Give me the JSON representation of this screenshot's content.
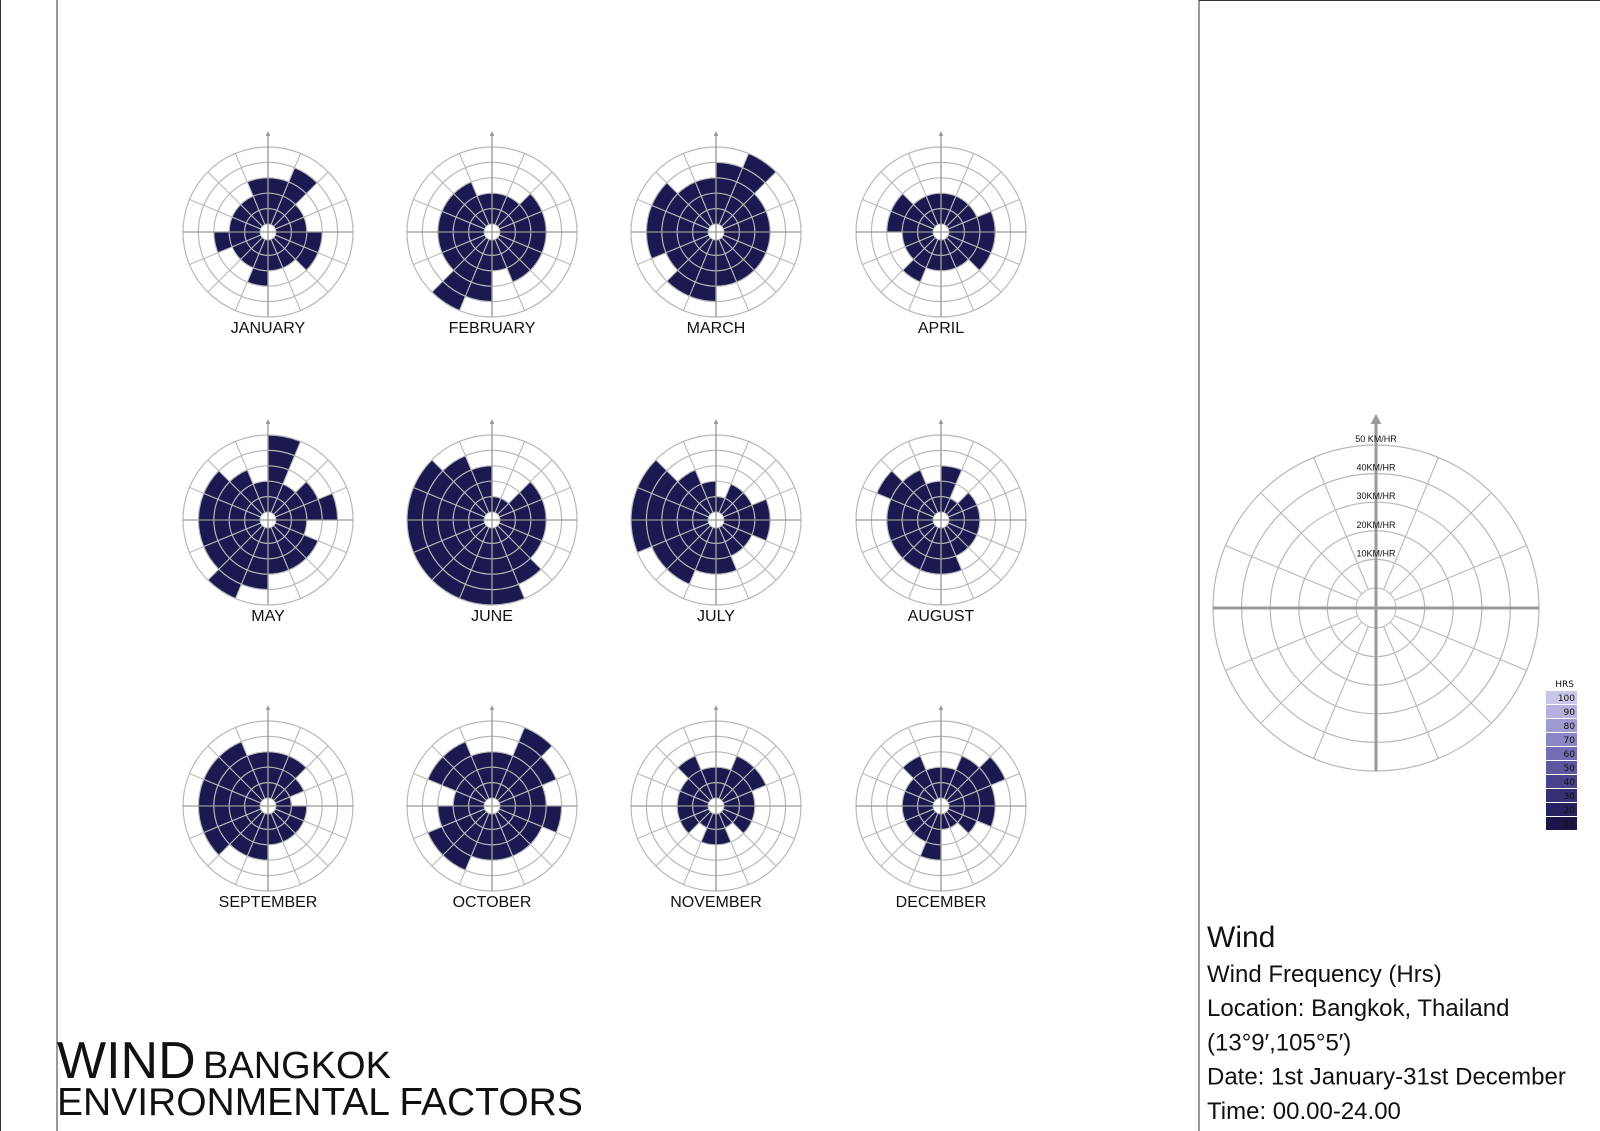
{
  "chart_data": [
    {
      "type": "wind-rose",
      "title": "JANUARY",
      "values": [
        30,
        40,
        20,
        20,
        30,
        30,
        20,
        20,
        30,
        20,
        20,
        30,
        20,
        20,
        20,
        30
      ],
      "color": "#1c1850",
      "rlim": [
        0,
        50
      ],
      "rticks": [
        10,
        20,
        30,
        40,
        50
      ]
    },
    {
      "type": "wind-rose",
      "title": "FEBRUARY",
      "values": [
        20,
        20,
        30,
        30,
        30,
        30,
        30,
        20,
        40,
        50,
        30,
        30,
        30,
        30,
        30,
        20
      ],
      "color": "#1c1850",
      "rlim": [
        0,
        50
      ],
      "rticks": [
        10,
        20,
        30,
        40,
        50
      ]
    },
    {
      "type": "wind-rose",
      "title": "MARCH",
      "values": [
        40,
        50,
        30,
        30,
        30,
        30,
        30,
        30,
        40,
        40,
        30,
        40,
        40,
        40,
        30,
        30
      ],
      "color": "#1c1850",
      "rlim": [
        0,
        50
      ],
      "rticks": [
        10,
        20,
        30,
        40,
        50
      ]
    },
    {
      "type": "wind-rose",
      "title": "APRIL",
      "values": [
        20,
        20,
        20,
        30,
        30,
        30,
        20,
        20,
        20,
        30,
        20,
        20,
        30,
        30,
        20,
        20
      ],
      "color": "#1c1850",
      "rlim": [
        0,
        50
      ],
      "rticks": [
        10,
        20,
        30,
        40,
        50
      ]
    },
    {
      "type": "wind-rose",
      "title": "MAY",
      "values": [
        50,
        20,
        30,
        40,
        20,
        30,
        30,
        30,
        40,
        50,
        40,
        40,
        40,
        40,
        30,
        20
      ],
      "color": "#1c1850",
      "rlim": [
        0,
        50
      ],
      "rticks": [
        10,
        20,
        30,
        40,
        50
      ]
    },
    {
      "type": "wind-rose",
      "title": "JUNE",
      "values": [
        10,
        10,
        30,
        30,
        30,
        30,
        40,
        50,
        50,
        50,
        50,
        50,
        50,
        50,
        40,
        30
      ],
      "color": "#1c1850",
      "rlim": [
        0,
        50
      ],
      "rticks": [
        10,
        20,
        30,
        40,
        50
      ]
    },
    {
      "type": "wind-rose",
      "title": "JULY",
      "values": [
        10,
        20,
        20,
        30,
        30,
        20,
        20,
        30,
        30,
        40,
        40,
        50,
        50,
        50,
        30,
        20
      ],
      "color": "#1c1850",
      "rlim": [
        0,
        50
      ],
      "rticks": [
        10,
        20,
        30,
        40,
        50
      ]
    },
    {
      "type": "wind-rose",
      "title": "AUGUST",
      "values": [
        30,
        10,
        20,
        20,
        20,
        20,
        20,
        30,
        30,
        30,
        30,
        30,
        30,
        40,
        30,
        20
      ],
      "color": "#1c1850",
      "rlim": [
        0,
        50
      ],
      "rticks": [
        10,
        20,
        30,
        40,
        50
      ]
    },
    {
      "type": "wind-rose",
      "title": "SEPTEMBER",
      "values": [
        30,
        30,
        20,
        10,
        20,
        20,
        20,
        20,
        30,
        30,
        40,
        40,
        40,
        40,
        40,
        30
      ],
      "color": "#1c1850",
      "rlim": [
        0,
        50
      ],
      "rticks": [
        10,
        20,
        30,
        40,
        50
      ]
    },
    {
      "type": "wind-rose",
      "title": "OCTOBER",
      "values": [
        30,
        50,
        40,
        30,
        40,
        30,
        30,
        30,
        30,
        40,
        40,
        30,
        20,
        40,
        40,
        30
      ],
      "color": "#1c1850",
      "rlim": [
        0,
        50
      ],
      "rticks": [
        10,
        20,
        30,
        40,
        50
      ]
    },
    {
      "type": "wind-rose",
      "title": "NOVEMBER",
      "values": [
        20,
        30,
        30,
        20,
        20,
        20,
        10,
        20,
        20,
        10,
        20,
        20,
        20,
        20,
        30,
        20
      ],
      "color": "#1c1850",
      "rlim": [
        0,
        50
      ],
      "rticks": [
        10,
        20,
        30,
        40,
        50
      ]
    },
    {
      "type": "wind-rose",
      "title": "DECEMBER",
      "values": [
        20,
        30,
        40,
        30,
        30,
        20,
        10,
        10,
        30,
        20,
        20,
        20,
        20,
        20,
        30,
        20
      ],
      "color": "#1c1850",
      "rlim": [
        0,
        50
      ],
      "rticks": [
        10,
        20,
        30,
        40,
        50
      ]
    },
    {
      "type": "polar-key",
      "rlim": [
        0,
        50
      ],
      "rticks": [
        {
          "value": 10,
          "label": "10KM/HR"
        },
        {
          "value": 20,
          "label": "20KM/HR"
        },
        {
          "value": 30,
          "label": "30KM/HR"
        },
        {
          "value": 40,
          "label": "40KM/HR"
        },
        {
          "value": 50,
          "label": "50 KM/HR"
        }
      ],
      "legend": {
        "title": "HRS",
        "items": [
          {
            "value": 100,
            "color": "#c9c7e8"
          },
          {
            "value": 90,
            "color": "#b4b1dc"
          },
          {
            "value": 80,
            "color": "#9f9bd0"
          },
          {
            "value": 70,
            "color": "#8a85c3"
          },
          {
            "value": 60,
            "color": "#736db3"
          },
          {
            "value": 50,
            "color": "#5d57a0"
          },
          {
            "value": 40,
            "color": "#48428b"
          },
          {
            "value": 30,
            "color": "#353074"
          },
          {
            "value": 20,
            "color": "#26215f"
          },
          {
            "value": 10,
            "color": "#1a1648"
          }
        ]
      }
    }
  ],
  "header": {
    "title": "WIND",
    "subtitle": "BANGKOK",
    "line2": "ENVIRONMENTAL FACTORS"
  },
  "info": {
    "heading": "Wind",
    "lines": [
      "Wind Frequency (Hrs)",
      "Location: Bangkok, Thailand",
      "(13°9′,105°5′)",
      "Date: 1st January-31st December",
      "Time: 00.00-24.00"
    ]
  }
}
